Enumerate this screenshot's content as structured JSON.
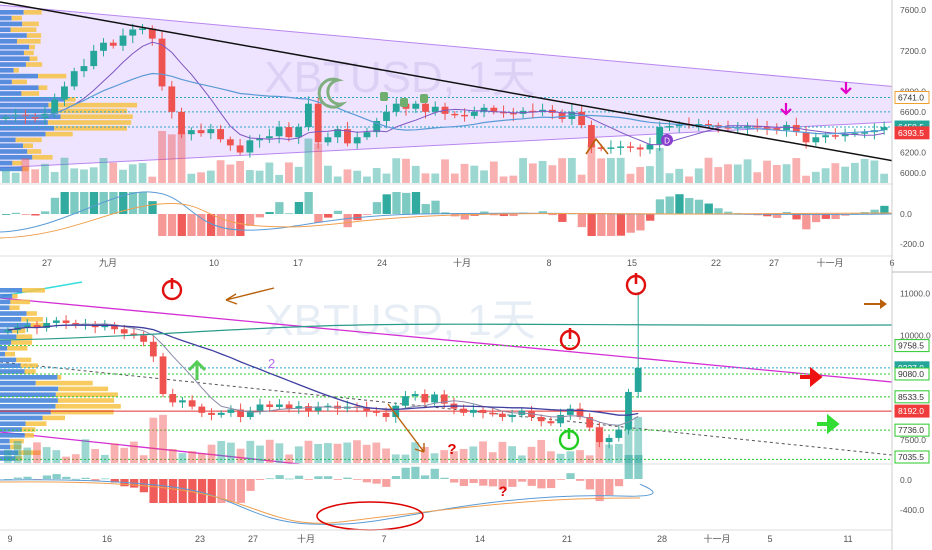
{
  "panels": {
    "top": {
      "watermark": "XBTUSD, 1天",
      "price_ticks": [
        "7600.0",
        "7200.0",
        "6800.0",
        "6600.0",
        "6400.0",
        "6200.0",
        "6000.0"
      ],
      "price_tags": [
        {
          "text": "6741.0",
          "kind": "outline-amber"
        },
        {
          "text": "6450.5",
          "kind": "teal"
        },
        {
          "text": "6393.5",
          "kind": "red"
        }
      ],
      "osc_ticks": [
        "0.0",
        "-200.0"
      ],
      "date_labels": [
        "27",
        "九月",
        "10",
        "17",
        "24",
        "十月",
        "8",
        "15",
        "22",
        "27",
        "十一月",
        "6"
      ],
      "markers": [
        "D"
      ]
    },
    "bottom": {
      "watermark": "XBTUSD, 1天",
      "price_ticks": [
        "11000.0",
        "10000.0",
        "7500.0"
      ],
      "price_tags": [
        {
          "text": "9758.5",
          "kind": "green-outline"
        },
        {
          "text": "9227.0",
          "kind": "teal"
        },
        {
          "text": "9080.0",
          "kind": "green-outline"
        },
        {
          "text": "8533.5",
          "kind": "green-outline"
        },
        {
          "text": "8192.0",
          "kind": "red"
        },
        {
          "text": "7736.0",
          "kind": "green-outline"
        },
        {
          "text": "7035.5",
          "kind": "green-outline"
        }
      ],
      "osc_ticks": [
        "0.0",
        "-400.0"
      ],
      "date_labels": [
        "9",
        "16",
        "23",
        "27",
        "十月",
        "7",
        "14",
        "21",
        "28",
        "十一月",
        "5",
        "11"
      ],
      "annotations": [
        "2",
        "?",
        "?"
      ]
    }
  },
  "colors": {
    "bull": "#26a69a",
    "bear": "#ef5350",
    "tag_teal": "#26a69a",
    "tag_red": "#ef3b3b",
    "level_green": "#28c828",
    "magenta": "#d42fd4",
    "trend_black": "#111111",
    "arrow_brown": "#b8600a",
    "axis_text": "#555555",
    "power_red": "#e01010",
    "power_green": "#22cc22",
    "band_fill": "#e7d6ff",
    "arrow_pink": "#e000c8",
    "arrow_green": "#33dd33",
    "arrow_red": "#ee1111"
  },
  "chart_data": [
    {
      "type": "candlestick",
      "title": "XBTUSD, 1天",
      "x_ticks": [
        "27",
        "九月",
        "10",
        "17",
        "24",
        "十月",
        "8",
        "15",
        "22",
        "27",
        "十一月",
        "6"
      ],
      "y_ticks": [
        7600,
        7200,
        6800,
        6600,
        6400,
        6200,
        6000
      ],
      "ylim": [
        5900,
        7700
      ],
      "series": [
        {
          "values": [
            6550,
            6570,
            6550,
            6540,
            6580,
            6720,
            6850,
            7000,
            7050,
            7200,
            7280,
            7250,
            7350,
            7410,
            7420,
            7320,
            6850,
            6600,
            6380,
            6420,
            6390,
            6430,
            6330,
            6270,
            6200,
            6320,
            6340,
            6360,
            6450,
            6350,
            6450,
            6680,
            6300,
            6350,
            6430,
            6290,
            6350,
            6400,
            6510,
            6600,
            6680,
            6630,
            6680,
            6600,
            6650,
            6580,
            6570,
            6560,
            6600,
            6640,
            6600,
            6590,
            6580,
            6610,
            6600,
            6620,
            6590,
            6530,
            6600,
            6470,
            6250,
            6240,
            6250,
            6260,
            6250,
            6230,
            6280,
            6450,
            6460,
            6480,
            6470,
            6480,
            6470,
            6450,
            6440,
            6450,
            6460,
            6450,
            6440,
            6420,
            6470,
            6400,
            6300,
            6350,
            6370,
            6360,
            6380,
            6390,
            6400,
            6420,
            6450
          ]
        }
      ],
      "price_labels": [
        6741.0,
        6450.5,
        6393.5
      ]
    },
    {
      "type": "candlestick",
      "title": "XBTUSD, 1天",
      "x_ticks": [
        "9",
        "16",
        "23",
        "27",
        "十月",
        "7",
        "14",
        "21",
        "28",
        "十一月",
        "5",
        "11"
      ],
      "y_ticks": [
        11000,
        10000,
        7500
      ],
      "ylim": [
        6950,
        11400
      ],
      "series": [
        {
          "values": [
            10130,
            10200,
            10250,
            10180,
            10300,
            10360,
            10300,
            10250,
            10280,
            10200,
            10260,
            10150,
            10050,
            10000,
            9850,
            9500,
            8600,
            8400,
            8450,
            8300,
            8150,
            8100,
            8150,
            8230,
            8050,
            8200,
            8350,
            8290,
            8350,
            8250,
            8310,
            8200,
            8300,
            8320,
            8250,
            8300,
            8280,
            8200,
            8150,
            8050,
            8320,
            8550,
            8600,
            8400,
            8590,
            8370,
            8250,
            8150,
            8220,
            8150,
            8130,
            8050,
            8100,
            8200,
            8050,
            7950,
            7900,
            8100,
            8250,
            8050,
            7800,
            7450,
            7550,
            7750,
            8650,
            9227
          ]
        }
      ],
      "price_labels": [
        9758.5,
        9227.0,
        9080.0,
        8533.5,
        8192.0,
        7736.0,
        7035.5
      ]
    }
  ]
}
